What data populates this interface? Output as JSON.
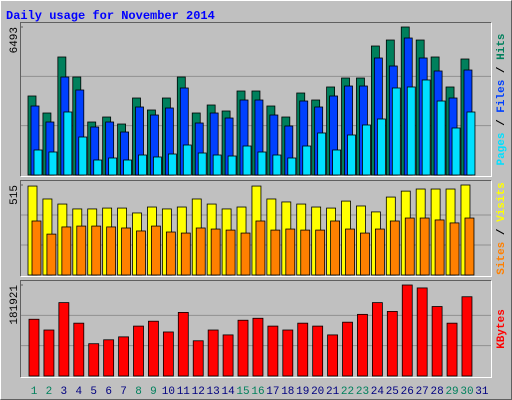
{
  "chart_data": [
    {
      "type": "bar",
      "title": "Daily usage for November 2014",
      "ylim": [
        0,
        6493
      ],
      "yticks": [
        6493
      ],
      "legend_separator": " / ",
      "series": [
        {
          "name": "Hits",
          "color": "#00805c",
          "values": [
            3466,
            2720,
            5177,
            4299,
            2325,
            2544,
            2237,
            3378,
            2852,
            3378,
            4299,
            2720,
            3071,
            2808,
            3685,
            3685,
            3027,
            2544,
            3597,
            3290,
            3861,
            4255,
            4255,
            5659,
            5922,
            6493,
            5922,
            5177,
            3861,
            5089,
            null
          ]
        },
        {
          "name": "Files",
          "color": "#0040ff",
          "values": [
            3027,
            2325,
            4299,
            3729,
            2106,
            2325,
            1886,
            2983,
            2632,
            2939,
            3817,
            2281,
            2720,
            2500,
            3290,
            3290,
            2632,
            2150,
            3246,
            2983,
            3466,
            3904,
            3904,
            5133,
            4782,
            6010,
            5133,
            4563,
            3378,
            4606,
            null
          ]
        },
        {
          "name": "Pages",
          "color": "#00e0ff",
          "values": [
            1097,
            1009,
            2764,
            1667,
            658,
            746,
            658,
            877,
            790,
            921,
            1316,
            965,
            877,
            833,
            1272,
            1009,
            877,
            746,
            1272,
            1843,
            1097,
            1755,
            2194,
            2457,
            3817,
            3861,
            4168,
            3246,
            2062,
            2764,
            null
          ]
        }
      ]
    },
    {
      "type": "bar",
      "ylim": [
        0,
        515
      ],
      "yticks": [
        515
      ],
      "legend_separator": " / ",
      "series": [
        {
          "name": "Visits",
          "color": "#ffff00",
          "values": [
            509,
            435,
            406,
            378,
            378,
            383,
            383,
            355,
            389,
            378,
            389,
            435,
            406,
            378,
            389,
            509,
            435,
            418,
            406,
            389,
            383,
            423,
            395,
            361,
            446,
            480,
            492,
            492,
            492,
            515,
            null
          ]
        },
        {
          "name": "Sites",
          "color": "#ff8000",
          "values": [
            309,
            234,
            275,
            280,
            280,
            275,
            269,
            252,
            280,
            246,
            240,
            269,
            263,
            257,
            240,
            309,
            257,
            263,
            257,
            257,
            309,
            263,
            240,
            263,
            309,
            326,
            326,
            315,
            298,
            326,
            null
          ]
        }
      ]
    },
    {
      "type": "bar",
      "ylim": [
        0,
        181921
      ],
      "yticks": [
        181921
      ],
      "categories": [
        "1",
        "2",
        "3",
        "4",
        "5",
        "6",
        "7",
        "8",
        "9",
        "10",
        "11",
        "12",
        "13",
        "14",
        "15",
        "16",
        "17",
        "18",
        "19",
        "20",
        "21",
        "22",
        "23",
        "24",
        "25",
        "26",
        "27",
        "28",
        "29",
        "30",
        "31"
      ],
      "category_colors": [
        "#00805c",
        "#00805c",
        "#000080",
        "#000080",
        "#000080",
        "#000080",
        "#000080",
        "#00805c",
        "#00805c",
        "#000080",
        "#000080",
        "#000080",
        "#000080",
        "#000080",
        "#00805c",
        "#00805c",
        "#000080",
        "#000080",
        "#000080",
        "#000080",
        "#000080",
        "#00805c",
        "#00805c",
        "#000080",
        "#000080",
        "#000080",
        "#000080",
        "#000080",
        "#00805c",
        "#00805c",
        "#000080"
      ],
      "series": [
        {
          "name": "KBytes",
          "color": "#ff0000",
          "values": [
            113455,
            91937,
            146710,
            105630,
            64552,
            72376,
            78245,
            99762,
            109542,
            88025,
            127148,
            70420,
            91937,
            82157,
            111499,
            115411,
            99762,
            91937,
            105630,
            99762,
            82157,
            107585,
            123235,
            146710,
            129104,
            181921,
            176052,
            138884,
            105630,
            158445,
            null
          ]
        }
      ]
    }
  ]
}
